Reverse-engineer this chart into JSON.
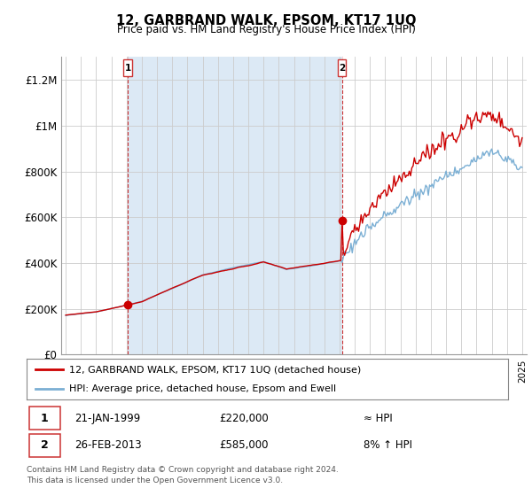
{
  "title": "12, GARBRAND WALK, EPSOM, KT17 1UQ",
  "subtitle": "Price paid vs. HM Land Registry's House Price Index (HPI)",
  "ylabel_ticks": [
    "£0",
    "£200K",
    "£400K",
    "£600K",
    "£800K",
    "£1M",
    "£1.2M"
  ],
  "ytick_values": [
    0,
    200000,
    400000,
    600000,
    800000,
    1000000,
    1200000
  ],
  "ylim": [
    0,
    1300000
  ],
  "xlim_start": 1994.7,
  "xlim_end": 2025.3,
  "sale1_date": 1999.07,
  "sale1_price": 220000,
  "sale2_date": 2013.15,
  "sale2_price": 585000,
  "sale1_text": "21-JAN-1999",
  "sale1_amount": "£220,000",
  "sale1_hpi": "≈ HPI",
  "sale2_text": "26-FEB-2013",
  "sale2_amount": "£585,000",
  "sale2_hpi": "8% ↑ HPI",
  "line_color": "#cc0000",
  "hpi_color": "#7bafd4",
  "marker_color": "#cc0000",
  "vline_color": "#cc3333",
  "shade_color": "#dce9f5",
  "background_color": "#ffffff",
  "grid_color": "#cccccc",
  "legend_line1": "12, GARBRAND WALK, EPSOM, KT17 1UQ (detached house)",
  "legend_line2": "HPI: Average price, detached house, Epsom and Ewell",
  "footer1": "Contains HM Land Registry data © Crown copyright and database right 2024.",
  "footer2": "This data is licensed under the Open Government Licence v3.0."
}
